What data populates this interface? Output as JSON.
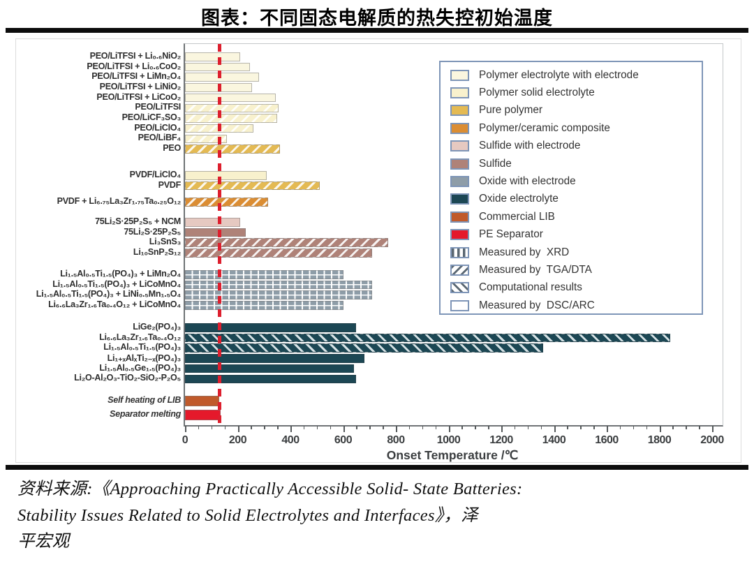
{
  "page": {
    "title": "图表：不同固态电解质的热失控初始温度",
    "source": {
      "line1": "资料来源:《Approaching Practically Accessible Solid- State Batteries:",
      "line2": "Stability Issues Related to Solid Electrolytes and Interfaces》，泽",
      "line3": "平宏观"
    }
  },
  "chart_data": {
    "type": "bar",
    "orientation": "horizontal",
    "xlabel": "Onset Temperature /℃",
    "xlim": [
      0,
      2000
    ],
    "xtick_step": 200,
    "minor_tick_step": 50,
    "grid": false,
    "legend_position": "upper right",
    "reference_line": {
      "value": 130,
      "color": "#dd1f2e",
      "style": "dashed"
    },
    "legend": [
      {
        "key": "polymer_with_electrode",
        "label": "Polymer electrolyte with electrode",
        "type": "color",
        "color": "#faf6df"
      },
      {
        "key": "polymer_solid",
        "label": "Polymer solid electrolyte",
        "type": "color",
        "color": "#f8f1cd"
      },
      {
        "key": "pure_polymer",
        "label": "Pure polymer",
        "type": "color",
        "color": "#e4ba53"
      },
      {
        "key": "composite",
        "label": "Polymer/ceramic composite",
        "type": "color",
        "color": "#db8d33"
      },
      {
        "key": "sulfide_with_electrode",
        "label": "Sulfide with electrode",
        "type": "color",
        "color": "#e6c9c1"
      },
      {
        "key": "sulfide",
        "label": "Sulfide",
        "type": "color",
        "color": "#af8278"
      },
      {
        "key": "oxide_with_electrode",
        "label": "Oxide with electrode",
        "type": "color",
        "color": "#8e9da8"
      },
      {
        "key": "oxide",
        "label": "Oxide electrolyte",
        "type": "color",
        "color": "#1c4754"
      },
      {
        "key": "lib",
        "label": "Commercial LIB",
        "type": "color",
        "color": "#c05a2b"
      },
      {
        "key": "pe",
        "label": "PE Separator",
        "type": "color",
        "color": "#e5192b"
      },
      {
        "key": "xrd",
        "label": "Measured by  XRD",
        "type": "pattern"
      },
      {
        "key": "tga",
        "label": "Measured by  TGA/DTA",
        "type": "pattern"
      },
      {
        "key": "comp",
        "label": "Computational results",
        "type": "pattern"
      },
      {
        "key": "dsc",
        "label": "Measured by  DSC/ARC",
        "type": "pattern"
      }
    ],
    "groups": [
      {
        "bars": [
          {
            "label": "PEO/LiTFSI + Li₀.₆NiO₂",
            "value": 210,
            "category": "polymer_with_electrode",
            "pattern": "none"
          },
          {
            "label": "PEO/LiTFSI + Li₀.₆CoO₂",
            "value": 245,
            "category": "polymer_with_electrode",
            "pattern": "none"
          },
          {
            "label": "PEO/LiTFSI + LiMn₂O₄",
            "value": 280,
            "category": "polymer_with_electrode",
            "pattern": "none"
          },
          {
            "label": "PEO/LiTFSI + LiNiO₂",
            "value": 255,
            "category": "polymer_with_electrode",
            "pattern": "none"
          },
          {
            "label": "PEO/LiTFSI + LiCoO₂",
            "value": 345,
            "category": "polymer_with_electrode",
            "pattern": "none"
          },
          {
            "label": "PEO/LiTFSI",
            "value": 355,
            "category": "polymer_solid",
            "pattern": "tga"
          },
          {
            "label": "PEO/LiCF₃SO₃",
            "value": 350,
            "category": "polymer_solid",
            "pattern": "tga"
          },
          {
            "label": "PEO/LiClO₄",
            "value": 260,
            "category": "polymer_solid",
            "pattern": "tga"
          },
          {
            "label": "PEO/LiBF₄",
            "value": 160,
            "category": "polymer_solid",
            "pattern": "tga"
          },
          {
            "label": "PEO",
            "value": 360,
            "category": "pure_polymer",
            "pattern": "tga"
          }
        ]
      },
      {
        "bars": [
          {
            "label": "PVDF/LiClO₄",
            "value": 310,
            "category": "polymer_solid",
            "pattern": "none"
          },
          {
            "label": "PVDF",
            "value": 510,
            "category": "pure_polymer",
            "pattern": "tga"
          }
        ]
      },
      {
        "bars": [
          {
            "label": "PVDF + Li₆.₇₅La₃Zr₁.₇₅Ta₀.₂₅O₁₂",
            "value": 315,
            "category": "composite",
            "pattern": "tga"
          }
        ]
      },
      {
        "bars": [
          {
            "label": "75Li₂S·25P₂S₅ + NCM",
            "value": 210,
            "category": "sulfide_with_electrode",
            "pattern": "none"
          },
          {
            "label": "75Li₂S·25P₂S₅",
            "value": 230,
            "category": "sulfide",
            "pattern": "none"
          },
          {
            "label": "Li₃SnS₃",
            "value": 770,
            "category": "sulfide",
            "pattern": "tga"
          },
          {
            "label": "Li₁₀SnP₂S₁₂",
            "value": 710,
            "category": "sulfide",
            "pattern": "tga"
          }
        ]
      },
      {
        "bars": [
          {
            "label": "Li₁.₅Al₀.₅Ti₁.₅(PO₄)₃ + LiMn₂O₄",
            "value": 600,
            "category": "oxide_with_electrode",
            "pattern": "xrd"
          },
          {
            "label": "Li₁.₅Al₀.₅Ti₁.₅(PO₄)₃ + LiCoMnO₄",
            "value": 710,
            "category": "oxide_with_electrode",
            "pattern": "xrd"
          },
          {
            "label": "Li₁.₅Al₀.₅Ti₁.₅(PO₄)₃ + LiNi₀.₅Mn₁.₅O₄",
            "value": 710,
            "category": "oxide_with_electrode",
            "pattern": "xrd"
          },
          {
            "label": "Li₆.₆La₃Zr₁.₆Ta₀.₄O₁₂ + LiCoMnO₄",
            "value": 600,
            "category": "oxide_with_electrode",
            "pattern": "xrd"
          }
        ]
      },
      {
        "bars": [
          {
            "label": "LiGe₂(PO₄)₃",
            "value": 650,
            "category": "oxide",
            "pattern": "none"
          },
          {
            "label": "Li₆.₆La₃Zr₁.₆Ta₀.₄O₁₂",
            "value": 1840,
            "category": "oxide",
            "pattern": "comp"
          },
          {
            "label": "Li₁.₅Al₀.₅Ti₁.₅(PO₄)₃",
            "value": 1360,
            "category": "oxide",
            "pattern": "comp"
          },
          {
            "label": "Li₁₊ₓAlₓTi₂₋ₓ(PO₄)₃",
            "value": 680,
            "category": "oxide",
            "pattern": "none"
          },
          {
            "label": "Li₁.₅Al₀.₅Ge₁.₅(PO₄)₃",
            "value": 640,
            "category": "oxide",
            "pattern": "none"
          },
          {
            "label": "Li₂O-Al₂O₃-TiO₂-SiO₂-P₂O₅",
            "value": 650,
            "category": "oxide",
            "pattern": "none"
          }
        ]
      },
      {
        "bars": [
          {
            "label": "Self heating of LIB",
            "value": 130,
            "category": "lib",
            "pattern": "none",
            "italic": true
          },
          {
            "label": "Separator melting",
            "value": 135,
            "category": "pe",
            "pattern": "none",
            "italic": true
          }
        ]
      }
    ]
  }
}
